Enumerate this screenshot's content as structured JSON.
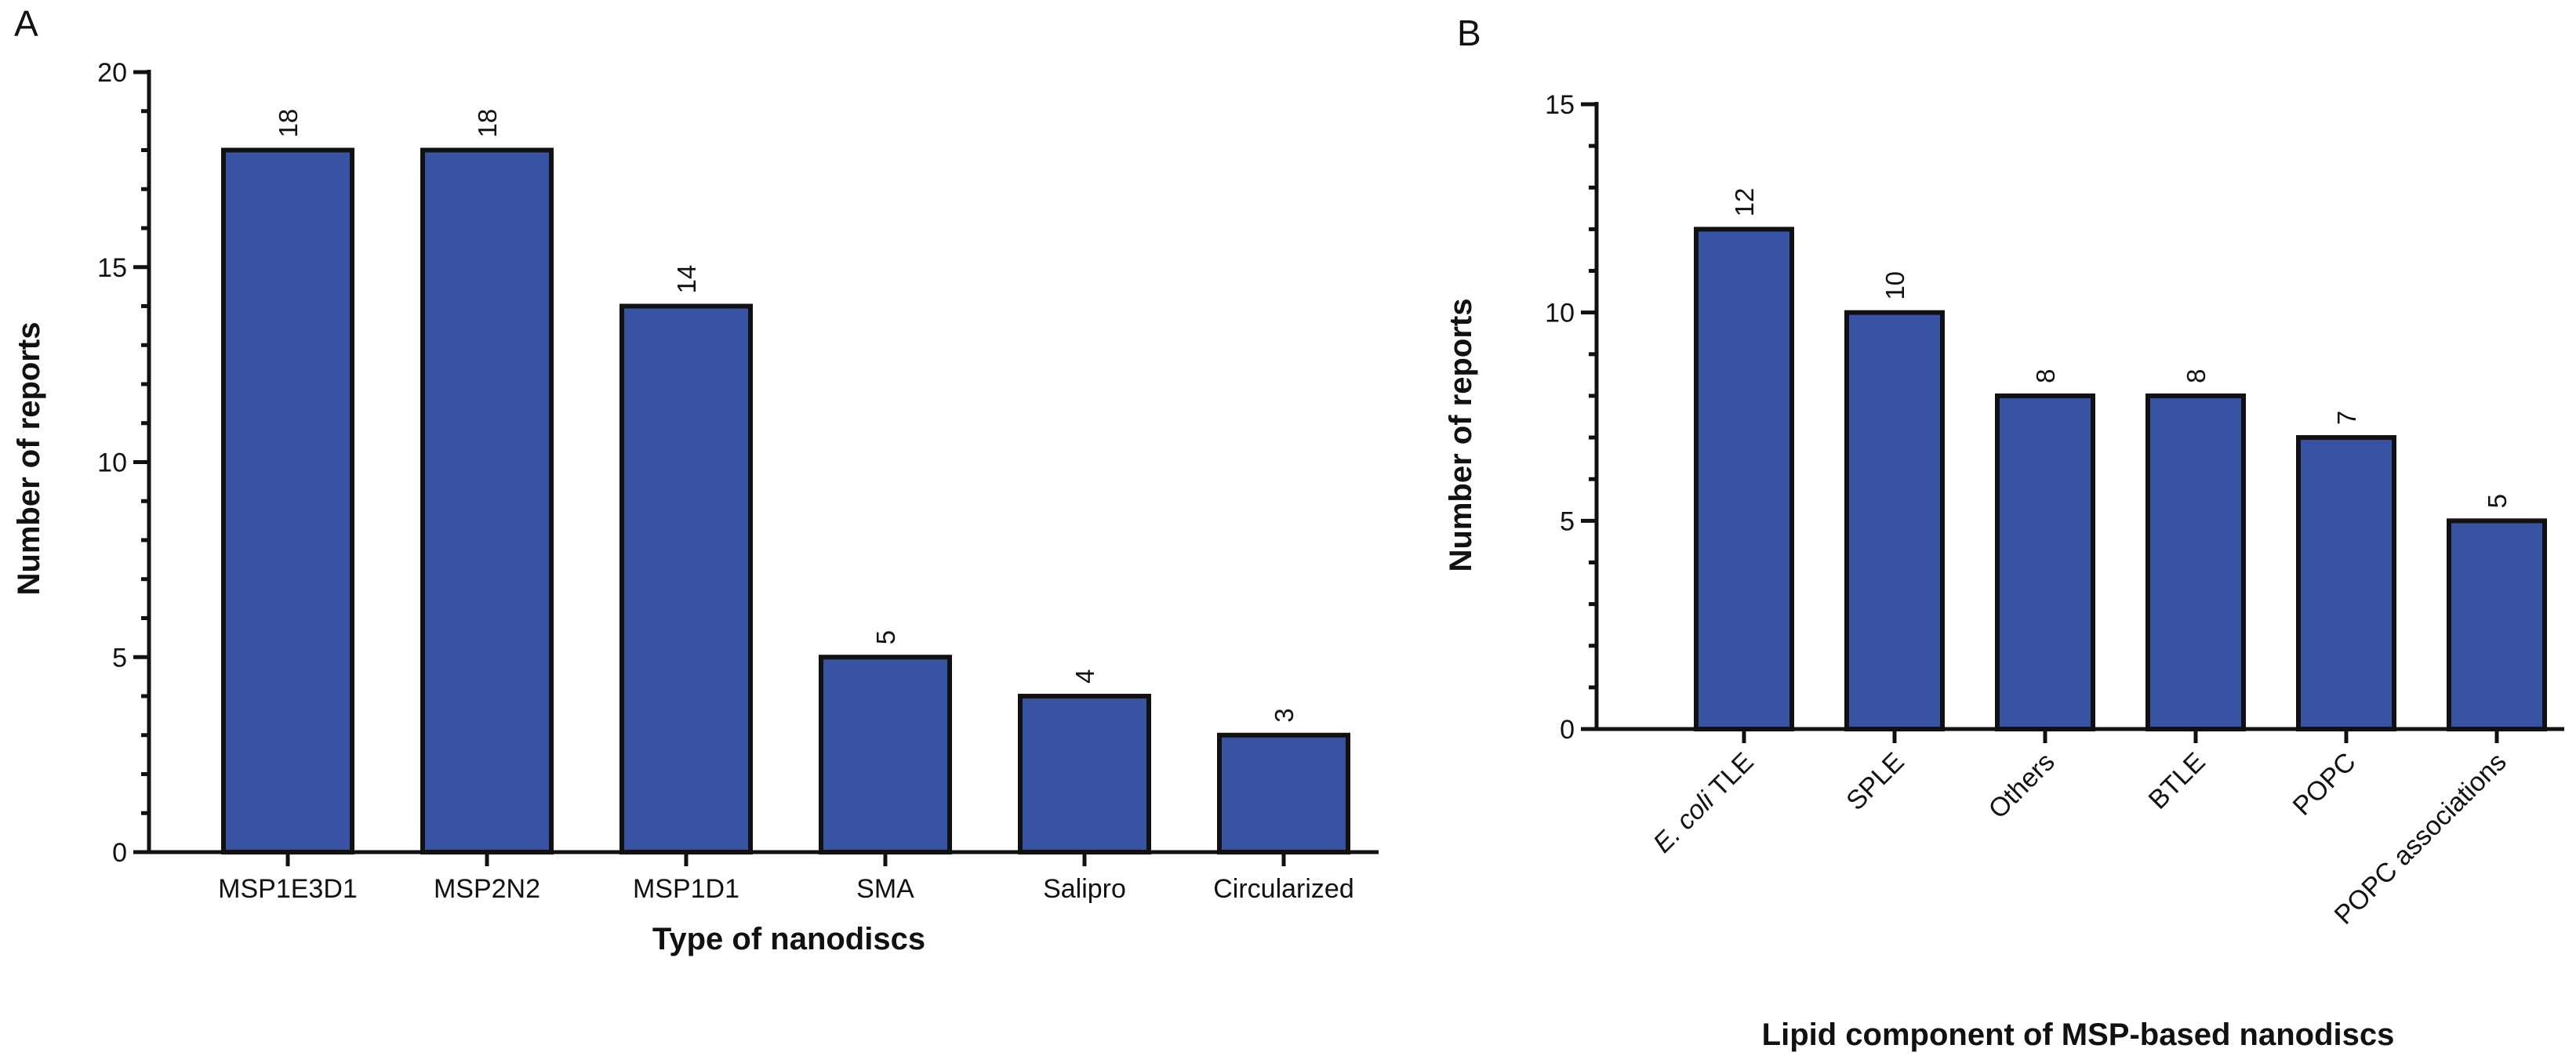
{
  "chart_data": [
    {
      "type": "bar",
      "panel": "A",
      "categories": [
        "MSP1E3D1",
        "MSP2N2",
        "MSP1D1",
        "SMA",
        "Salipro",
        "Circularized"
      ],
      "values": [
        18,
        18,
        14,
        5,
        4,
        3
      ],
      "value_labels": [
        "18",
        "18",
        "14",
        "5",
        "4",
        "3"
      ],
      "xlabel": "Type of nanodiscs",
      "ylabel": "Number of reports",
      "ylim": [
        0,
        20
      ],
      "major_ticks": [
        0,
        5,
        10,
        15,
        20
      ],
      "minor_tick_step": 1,
      "category_label_rotation": 0,
      "bar_color": "#3953a4",
      "grid": false,
      "legend": "none"
    },
    {
      "type": "bar",
      "panel": "B",
      "categories": [
        {
          "italic": "E. coli",
          "plain": " TLE"
        },
        {
          "italic": "",
          "plain": "SPLE"
        },
        {
          "italic": "",
          "plain": "Others"
        },
        {
          "italic": "",
          "plain": "BTLE"
        },
        {
          "italic": "",
          "plain": "POPC"
        },
        {
          "italic": "",
          "plain": "POPC associations"
        }
      ],
      "values": [
        12,
        10,
        8,
        8,
        7,
        5
      ],
      "value_labels": [
        "12",
        "10",
        "8",
        "8",
        "7",
        "5"
      ],
      "xlabel": "Lipid component of MSP-based nanodiscs",
      "ylabel": "Number of reports",
      "ylim": [
        0,
        15
      ],
      "major_ticks": [
        0,
        5,
        10,
        15
      ],
      "minor_tick_step": 1,
      "category_label_rotation": -45,
      "bar_color": "#3953a4",
      "grid": false,
      "legend": "none"
    }
  ]
}
